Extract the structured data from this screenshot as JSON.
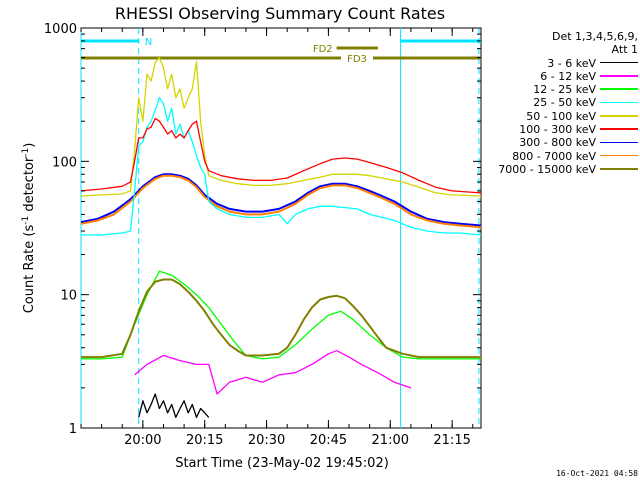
{
  "chart_data": {
    "type": "line",
    "title": "RHESSI Observing Summary Count Rates",
    "xlabel": "Start Time (23-May-02 19:45:02)",
    "ylabel_main": "Count Rate (s",
    "ylabel_sup1": "-1",
    "ylabel_mid": " detector",
    "ylabel_sup2": "-1",
    "ylabel_end": ")",
    "y_scale": "log",
    "ylim": [
      1,
      1000
    ],
    "xlim_minutes": [
      0,
      97
    ],
    "x_ticks": [
      {
        "label": "20:00",
        "minute": 15
      },
      {
        "label": "20:15",
        "minute": 30
      },
      {
        "label": "20:30",
        "minute": 45
      },
      {
        "label": "20:45",
        "minute": 60
      },
      {
        "label": "21:00",
        "minute": 75
      },
      {
        "label": "21:15",
        "minute": 90
      }
    ],
    "y_ticks": [
      {
        "label": "1",
        "value": 1
      },
      {
        "label": "10",
        "value": 10
      },
      {
        "label": "100",
        "value": 100
      },
      {
        "label": "1000",
        "value": 1000
      }
    ],
    "legend_header_1": "Det 1,3,4,5,6,9,",
    "legend_header_2": "Att 1",
    "legend_position": "right",
    "series": [
      {
        "name": "3 - 6 keV",
        "color": "#000000",
        "x": [
          14,
          15,
          16,
          17,
          18,
          19,
          20,
          21,
          22,
          23,
          24,
          25,
          26,
          27,
          28,
          29,
          30,
          31
        ],
        "y": [
          1.2,
          1.6,
          1.3,
          1.5,
          1.8,
          1.4,
          1.6,
          1.3,
          1.5,
          1.2,
          1.4,
          1.6,
          1.3,
          1.5,
          1.2,
          1.4,
          1.3,
          1.2
        ]
      },
      {
        "name": "6 - 12 keV",
        "color": "#ff00ff",
        "x": [
          13,
          16,
          20,
          24,
          28,
          31,
          33,
          36,
          40,
          44,
          48,
          52,
          56,
          60,
          62,
          65,
          68,
          72,
          76,
          80
        ],
        "y": [
          2.5,
          3.0,
          3.5,
          3.2,
          3.0,
          3.0,
          1.8,
          2.2,
          2.4,
          2.2,
          2.5,
          2.6,
          3.0,
          3.6,
          3.8,
          3.4,
          3.0,
          2.6,
          2.2,
          2.0
        ]
      },
      {
        "name": "12 - 25 keV",
        "color": "#00ff00",
        "x": [
          0,
          5,
          10,
          13,
          16,
          19,
          22,
          25,
          28,
          31,
          34,
          37,
          40,
          44,
          48,
          52,
          56,
          60,
          63,
          66,
          70,
          74,
          78,
          82,
          86,
          90,
          94,
          97
        ],
        "y": [
          3.3,
          3.3,
          3.4,
          6.0,
          10.0,
          15.0,
          14.0,
          12.0,
          10.0,
          8.0,
          6.0,
          4.5,
          3.5,
          3.3,
          3.4,
          4.2,
          5.5,
          7.0,
          7.5,
          6.5,
          5.0,
          4.0,
          3.4,
          3.3,
          3.3,
          3.3,
          3.3,
          3.3
        ]
      },
      {
        "name": "25 - 50 keV",
        "color": "#00ffff",
        "x": [
          0,
          5,
          10,
          12,
          13,
          14,
          15,
          16,
          17,
          18,
          19,
          20,
          21,
          22,
          23,
          24,
          25,
          26,
          27,
          28,
          29,
          30,
          31,
          33,
          36,
          40,
          44,
          48,
          50,
          52,
          55,
          58,
          61,
          64,
          67,
          70,
          73,
          76,
          80,
          84,
          88,
          92,
          97
        ],
        "y": [
          28,
          28,
          29,
          30,
          60,
          130,
          140,
          180,
          200,
          240,
          300,
          270,
          200,
          250,
          160,
          190,
          150,
          170,
          140,
          110,
          90,
          80,
          50,
          44,
          40,
          38,
          38,
          40,
          34,
          40,
          44,
          46,
          46,
          45,
          44,
          40,
          38,
          36,
          32,
          30,
          29,
          29,
          28
        ]
      },
      {
        "name": "50 - 100 keV",
        "color": "#d4d400",
        "x": [
          0,
          5,
          10,
          12,
          13,
          14,
          15,
          16,
          17,
          18,
          19,
          20,
          21,
          22,
          23,
          24,
          25,
          26,
          27,
          28,
          29,
          30,
          31,
          34,
          38,
          42,
          46,
          50,
          54,
          58,
          61,
          64,
          67,
          70,
          74,
          78,
          82,
          86,
          90,
          97
        ],
        "y": [
          55,
          56,
          57,
          60,
          120,
          300,
          200,
          450,
          400,
          550,
          600,
          500,
          350,
          450,
          300,
          350,
          250,
          300,
          350,
          560,
          200,
          110,
          78,
          72,
          68,
          66,
          66,
          68,
          72,
          76,
          80,
          80,
          80,
          78,
          74,
          70,
          64,
          58,
          56,
          55
        ]
      },
      {
        "name": "100 - 300 keV",
        "color": "#ff0000",
        "x": [
          0,
          5,
          10,
          12,
          13,
          14,
          15,
          16,
          17,
          18,
          19,
          20,
          21,
          22,
          23,
          24,
          25,
          26,
          27,
          28,
          29,
          30,
          31,
          34,
          38,
          42,
          46,
          50,
          54,
          58,
          61,
          64,
          67,
          70,
          74,
          78,
          82,
          86,
          90,
          97
        ],
        "y": [
          60,
          62,
          65,
          70,
          100,
          150,
          150,
          175,
          180,
          210,
          200,
          180,
          160,
          170,
          150,
          160,
          150,
          170,
          190,
          200,
          140,
          100,
          85,
          78,
          74,
          72,
          72,
          75,
          85,
          96,
          104,
          106,
          104,
          98,
          90,
          82,
          72,
          64,
          60,
          58
        ]
      },
      {
        "name": "300 - 800 keV",
        "color": "#0000ff",
        "x": [
          0,
          4,
          8,
          12,
          15,
          18,
          20,
          22,
          24,
          26,
          28,
          30,
          33,
          36,
          40,
          44,
          48,
          52,
          55,
          58,
          61,
          64,
          67,
          70,
          73,
          76,
          80,
          84,
          88,
          92,
          97
        ],
        "y": [
          35,
          37,
          42,
          52,
          65,
          76,
          80,
          80,
          78,
          74,
          66,
          56,
          48,
          44,
          42,
          42,
          44,
          50,
          58,
          65,
          68,
          68,
          65,
          60,
          55,
          50,
          42,
          37,
          35,
          34,
          33
        ]
      },
      {
        "name": "800 - 7000 keV",
        "color": "#ff8000",
        "x": [
          0,
          4,
          8,
          12,
          15,
          18,
          20,
          22,
          24,
          26,
          28,
          30,
          33,
          36,
          40,
          44,
          48,
          52,
          55,
          58,
          61,
          64,
          67,
          70,
          73,
          76,
          80,
          84,
          88,
          92,
          97
        ],
        "y": [
          34,
          36,
          40,
          50,
          63,
          74,
          78,
          78,
          76,
          72,
          64,
          54,
          46,
          42,
          40,
          40,
          42,
          48,
          56,
          63,
          66,
          66,
          63,
          58,
          53,
          48,
          40,
          36,
          34,
          33,
          32
        ]
      },
      {
        "name": "7000 - 15000 keV",
        "color": "#808000",
        "x": [
          0,
          5,
          10,
          12,
          14,
          16,
          18,
          20,
          22,
          24,
          26,
          28,
          30,
          32,
          34,
          36,
          38,
          40,
          44,
          48,
          50,
          52,
          54,
          56,
          58,
          60,
          62,
          64,
          66,
          68,
          70,
          72,
          74,
          78,
          82,
          86,
          90,
          94,
          97
        ],
        "y": [
          3.4,
          3.4,
          3.6,
          5.0,
          7.5,
          10.5,
          12.5,
          13.0,
          13.0,
          12.0,
          10.5,
          9.0,
          7.5,
          6.0,
          5.0,
          4.2,
          3.8,
          3.5,
          3.5,
          3.6,
          4.0,
          5.0,
          6.5,
          8.0,
          9.2,
          9.6,
          9.8,
          9.4,
          8.2,
          7.0,
          5.8,
          4.8,
          4.0,
          3.6,
          3.4,
          3.4,
          3.4,
          3.4,
          3.4
        ]
      }
    ],
    "annotations": {
      "night_label": "N",
      "night_segments": [
        [
          0,
          14
        ],
        [
          77.5,
          97
        ]
      ],
      "fd2_label": "FD2",
      "fd2_segment": [
        62,
        72
      ],
      "fd3_label": "FD3",
      "fd3_segment": [
        0,
        97
      ],
      "vertical_lines_solid": [
        0,
        77.5
      ],
      "vertical_lines_dashed": [
        14,
        96.5
      ]
    }
  },
  "footer_timestamp": "16-Oct-2021 04:58"
}
